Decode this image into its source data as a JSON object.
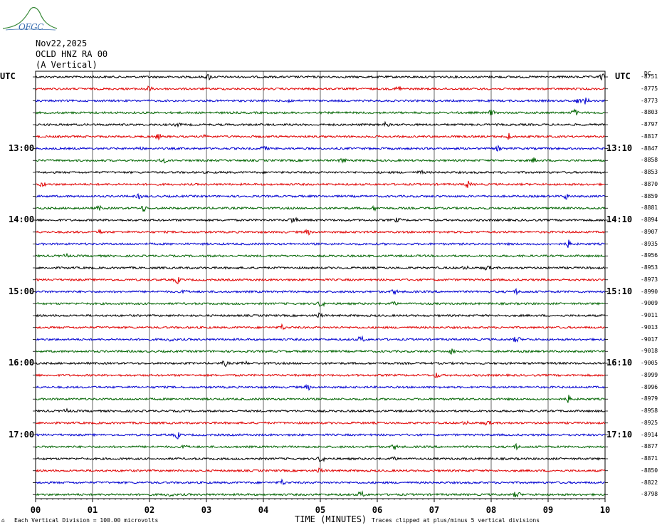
{
  "logo": {
    "text": "OFGC",
    "color": "#3a6fb0",
    "icon": "mountain-icon"
  },
  "header": {
    "date": "Nov22,2025",
    "station": "OCLD HNZ RA 00",
    "component": "(A Vertical)"
  },
  "chart_data": {
    "type": "line",
    "title": "",
    "left_axis_label": "UTC",
    "right_axis_label": "UTC",
    "right_corner_label": "DC",
    "xlabel": "TIME (MINUTES)",
    "xlim": [
      0,
      10
    ],
    "x_ticks": [
      "00",
      "01",
      "02",
      "03",
      "04",
      "05",
      "06",
      "07",
      "08",
      "09",
      "10"
    ],
    "grid": "vertical",
    "trace_colors": [
      "#000000",
      "#e00000",
      "#0000d0",
      "#006400"
    ],
    "trace_minutes": 10,
    "trace_count": 36,
    "left_hour_labels": [
      {
        "trace_index": 6,
        "label": "13:00"
      },
      {
        "trace_index": 12,
        "label": "14:00"
      },
      {
        "trace_index": 18,
        "label": "15:00"
      },
      {
        "trace_index": 24,
        "label": "16:00"
      },
      {
        "trace_index": 30,
        "label": "17:00"
      }
    ],
    "right_hour_labels": [
      {
        "trace_index": 6,
        "label": "13:10"
      },
      {
        "trace_index": 12,
        "label": "14:10"
      },
      {
        "trace_index": 18,
        "label": "15:10"
      },
      {
        "trace_index": 24,
        "label": "16:10"
      },
      {
        "trace_index": 30,
        "label": "17:10"
      }
    ],
    "dc_offsets": [
      -8751,
      -8775,
      -8773,
      -8803,
      -8797,
      -8817,
      -8847,
      -8858,
      -8853,
      -8870,
      -8859,
      -8881,
      -8894,
      -8907,
      -8935,
      -8956,
      -8953,
      -8973,
      -8990,
      -9009,
      -9011,
      -9013,
      -9017,
      -9018,
      -9005,
      -8999,
      -8996,
      -8979,
      -8958,
      -8925,
      -8914,
      -8877,
      -8871,
      -8850,
      -8822,
      -8798
    ],
    "scale_note": "Each Vertical Division =  100.00 microvolts",
    "clip_note": "Traces clipped at plus/minus 5 vertical divisions"
  }
}
